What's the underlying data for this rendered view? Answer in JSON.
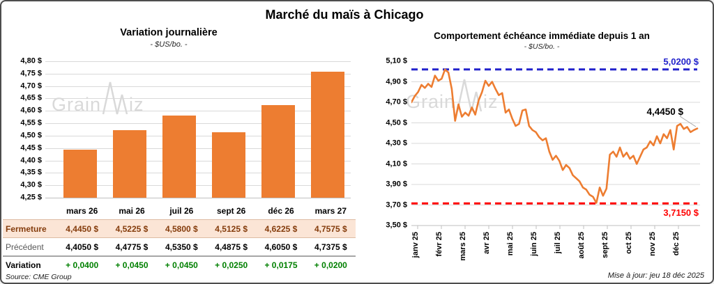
{
  "title": "Marché du maïs à Chicago",
  "watermark": {
    "part1": "Grain",
    "part2": "iz"
  },
  "colors": {
    "orange": "#ED7D31",
    "peach_bg": "#FBE5D6",
    "brown_text": "#843C0C",
    "green_text": "#008000",
    "blue_ref": "#2323CC",
    "red_ref": "#FF0000",
    "grid": "#D9D9D9",
    "axis": "#BFBFBF"
  },
  "chart_data": [
    {
      "type": "bar",
      "title": "Variation journalière",
      "subtitle": "- $US/bo. -",
      "categories": [
        "mars 26",
        "mai 26",
        "juil 26",
        "sept 26",
        "déc 26",
        "mars 27"
      ],
      "values": [
        4.445,
        4.5225,
        4.58,
        4.5125,
        4.6225,
        4.7575
      ],
      "ylim": [
        4.25,
        4.8
      ],
      "ytick_labels": [
        "4,80 $",
        "4,75 $",
        "4,70 $",
        "4,65 $",
        "4,60 $",
        "4,55 $",
        "4,50 $",
        "4,45 $",
        "4,40 $",
        "4,35 $",
        "4,30 $",
        "4,25 $"
      ],
      "grid": true,
      "legend": "none"
    },
    {
      "type": "line",
      "title": "Comportement échéance immédiate depuis 1 an",
      "subtitle": "- $US/bo. -",
      "x_tick_labels": [
        "janv 25",
        "févr 25",
        "mars 25",
        "avr 25",
        "mai 25",
        "juin 25",
        "juil 25",
        "août 25",
        "sept 25",
        "oct 25",
        "nov 25",
        "déc 25"
      ],
      "ylim": [
        3.5,
        5.1
      ],
      "ytick_labels": [
        "5,10 $",
        "4,90 $",
        "4,70 $",
        "4,50 $",
        "4,30 $",
        "4,10 $",
        "3,90 $",
        "3,70 $",
        "3,50 $"
      ],
      "values": [
        4.7,
        4.76,
        4.8,
        4.87,
        4.84,
        4.88,
        4.85,
        4.96,
        4.91,
        4.93,
        5.02,
        4.99,
        4.83,
        4.52,
        4.68,
        4.56,
        4.6,
        4.57,
        4.65,
        4.58,
        4.72,
        4.8,
        4.91,
        4.86,
        4.9,
        4.83,
        4.77,
        4.79,
        4.6,
        4.63,
        4.54,
        4.47,
        4.49,
        4.62,
        4.63,
        4.47,
        4.43,
        4.41,
        4.36,
        4.33,
        4.35,
        4.22,
        4.14,
        4.18,
        4.13,
        4.04,
        4.09,
        4.06,
        3.99,
        3.96,
        3.93,
        3.87,
        3.85,
        3.8,
        3.78,
        3.72,
        3.87,
        3.79,
        3.86,
        4.19,
        4.22,
        4.17,
        4.26,
        4.17,
        4.21,
        4.15,
        4.18,
        4.1,
        4.17,
        4.24,
        4.26,
        4.32,
        4.28,
        4.37,
        4.3,
        4.39,
        4.35,
        4.43,
        4.24,
        4.47,
        4.49,
        4.44,
        4.46,
        4.41,
        4.43,
        4.445
      ],
      "ref_lines": [
        {
          "value": 5.02,
          "label": "5,0200 $",
          "position": "high"
        },
        {
          "value": 3.715,
          "label": "3,7150 $",
          "position": "low"
        }
      ],
      "last_point_label": "4,4450 $",
      "grid": true,
      "legend": "none"
    }
  ],
  "table": {
    "header": [
      "mars 26",
      "mai 26",
      "juil 26",
      "sept 26",
      "déc 26",
      "mars 27"
    ],
    "rows": [
      {
        "label": "Fermeture",
        "style": "fermeture",
        "values": [
          "4,4450 $",
          "4,5225 $",
          "4,5800 $",
          "4,5125 $",
          "4,6225 $",
          "4,7575 $"
        ]
      },
      {
        "label": "Précédent",
        "style": "precedent",
        "values": [
          "4,4050 $",
          "4,4775 $",
          "4,5350 $",
          "4,4875 $",
          "4,6050 $",
          "4,7375 $"
        ]
      },
      {
        "label": "Variation",
        "style": "variation",
        "values": [
          "+ 0,0400",
          "+ 0,0450",
          "+ 0,0450",
          "+ 0,0250",
          "+ 0,0175",
          "+ 0,0200"
        ]
      }
    ]
  },
  "footer": {
    "source": "Source: CME Group",
    "updated": "Mise à jour: jeu 18 déc 2025"
  }
}
